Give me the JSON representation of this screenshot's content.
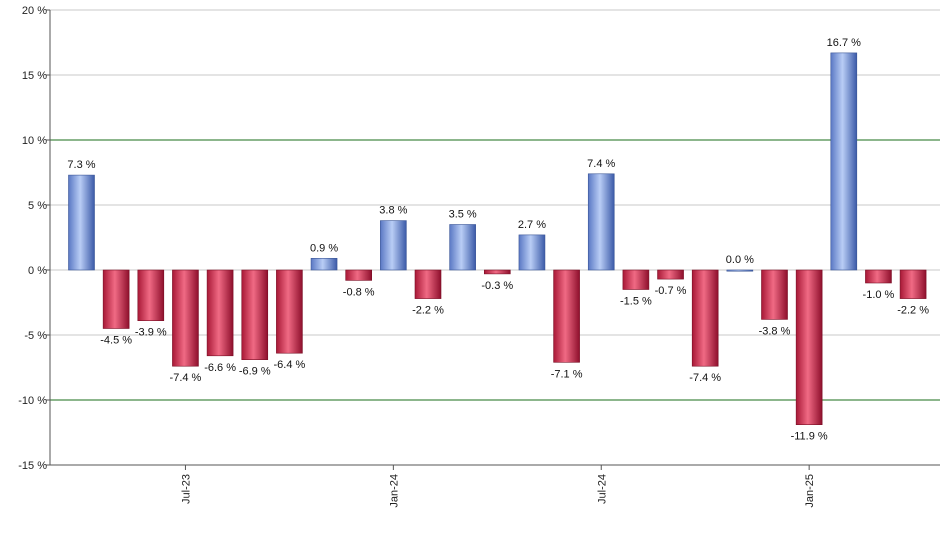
{
  "chart_data": {
    "type": "bar",
    "title": "",
    "xlabel": "",
    "ylabel": "",
    "ylim": [
      -15,
      20
    ],
    "y_ticks": [
      20,
      15,
      10,
      5,
      0,
      -5,
      -10,
      -15
    ],
    "y_tick_labels": [
      "20 %",
      "15 %",
      "10 %",
      "5 %",
      "0 %",
      "-5 %",
      "-10 %",
      "-15 %"
    ],
    "reference_lines": [
      10,
      -10
    ],
    "grid": true,
    "legend": "none",
    "x_tick_labels": [
      {
        "label": "Jul-23",
        "index": 3
      },
      {
        "label": "Jan-24",
        "index": 9
      },
      {
        "label": "Jul-24",
        "index": 15
      },
      {
        "label": "Jan-25",
        "index": 21
      }
    ],
    "values": [
      7.3,
      -4.5,
      -3.9,
      -7.4,
      -6.6,
      -6.9,
      -6.4,
      0.9,
      -0.8,
      3.8,
      -2.2,
      3.5,
      -0.3,
      2.7,
      -7.1,
      7.4,
      -1.5,
      -0.7,
      -7.4,
      0.0,
      -3.8,
      -11.9,
      16.7,
      -1.0,
      -2.2
    ],
    "labels": [
      "7.3 %",
      "-4.5 %",
      "-3.9 %",
      "-7.4 %",
      "-6.6 %",
      "-6.9 %",
      "-6.4 %",
      "0.9 %",
      "-0.8 %",
      "3.8 %",
      "-2.2 %",
      "3.5 %",
      "-0.3 %",
      "2.7 %",
      "-7.1 %",
      "7.4 %",
      "-1.5 %",
      "-0.7 %",
      "-7.4 %",
      "0.0 %",
      "-3.8 %",
      "-11.9 %",
      "16.7 %",
      "-1.0 %",
      "-2.2 %"
    ],
    "colors": {
      "positive": "#6f8fd8",
      "negative": "#c8294a",
      "grid": "#c8c8c8",
      "reference": "#1a6e1a",
      "axis": "#555555"
    }
  }
}
